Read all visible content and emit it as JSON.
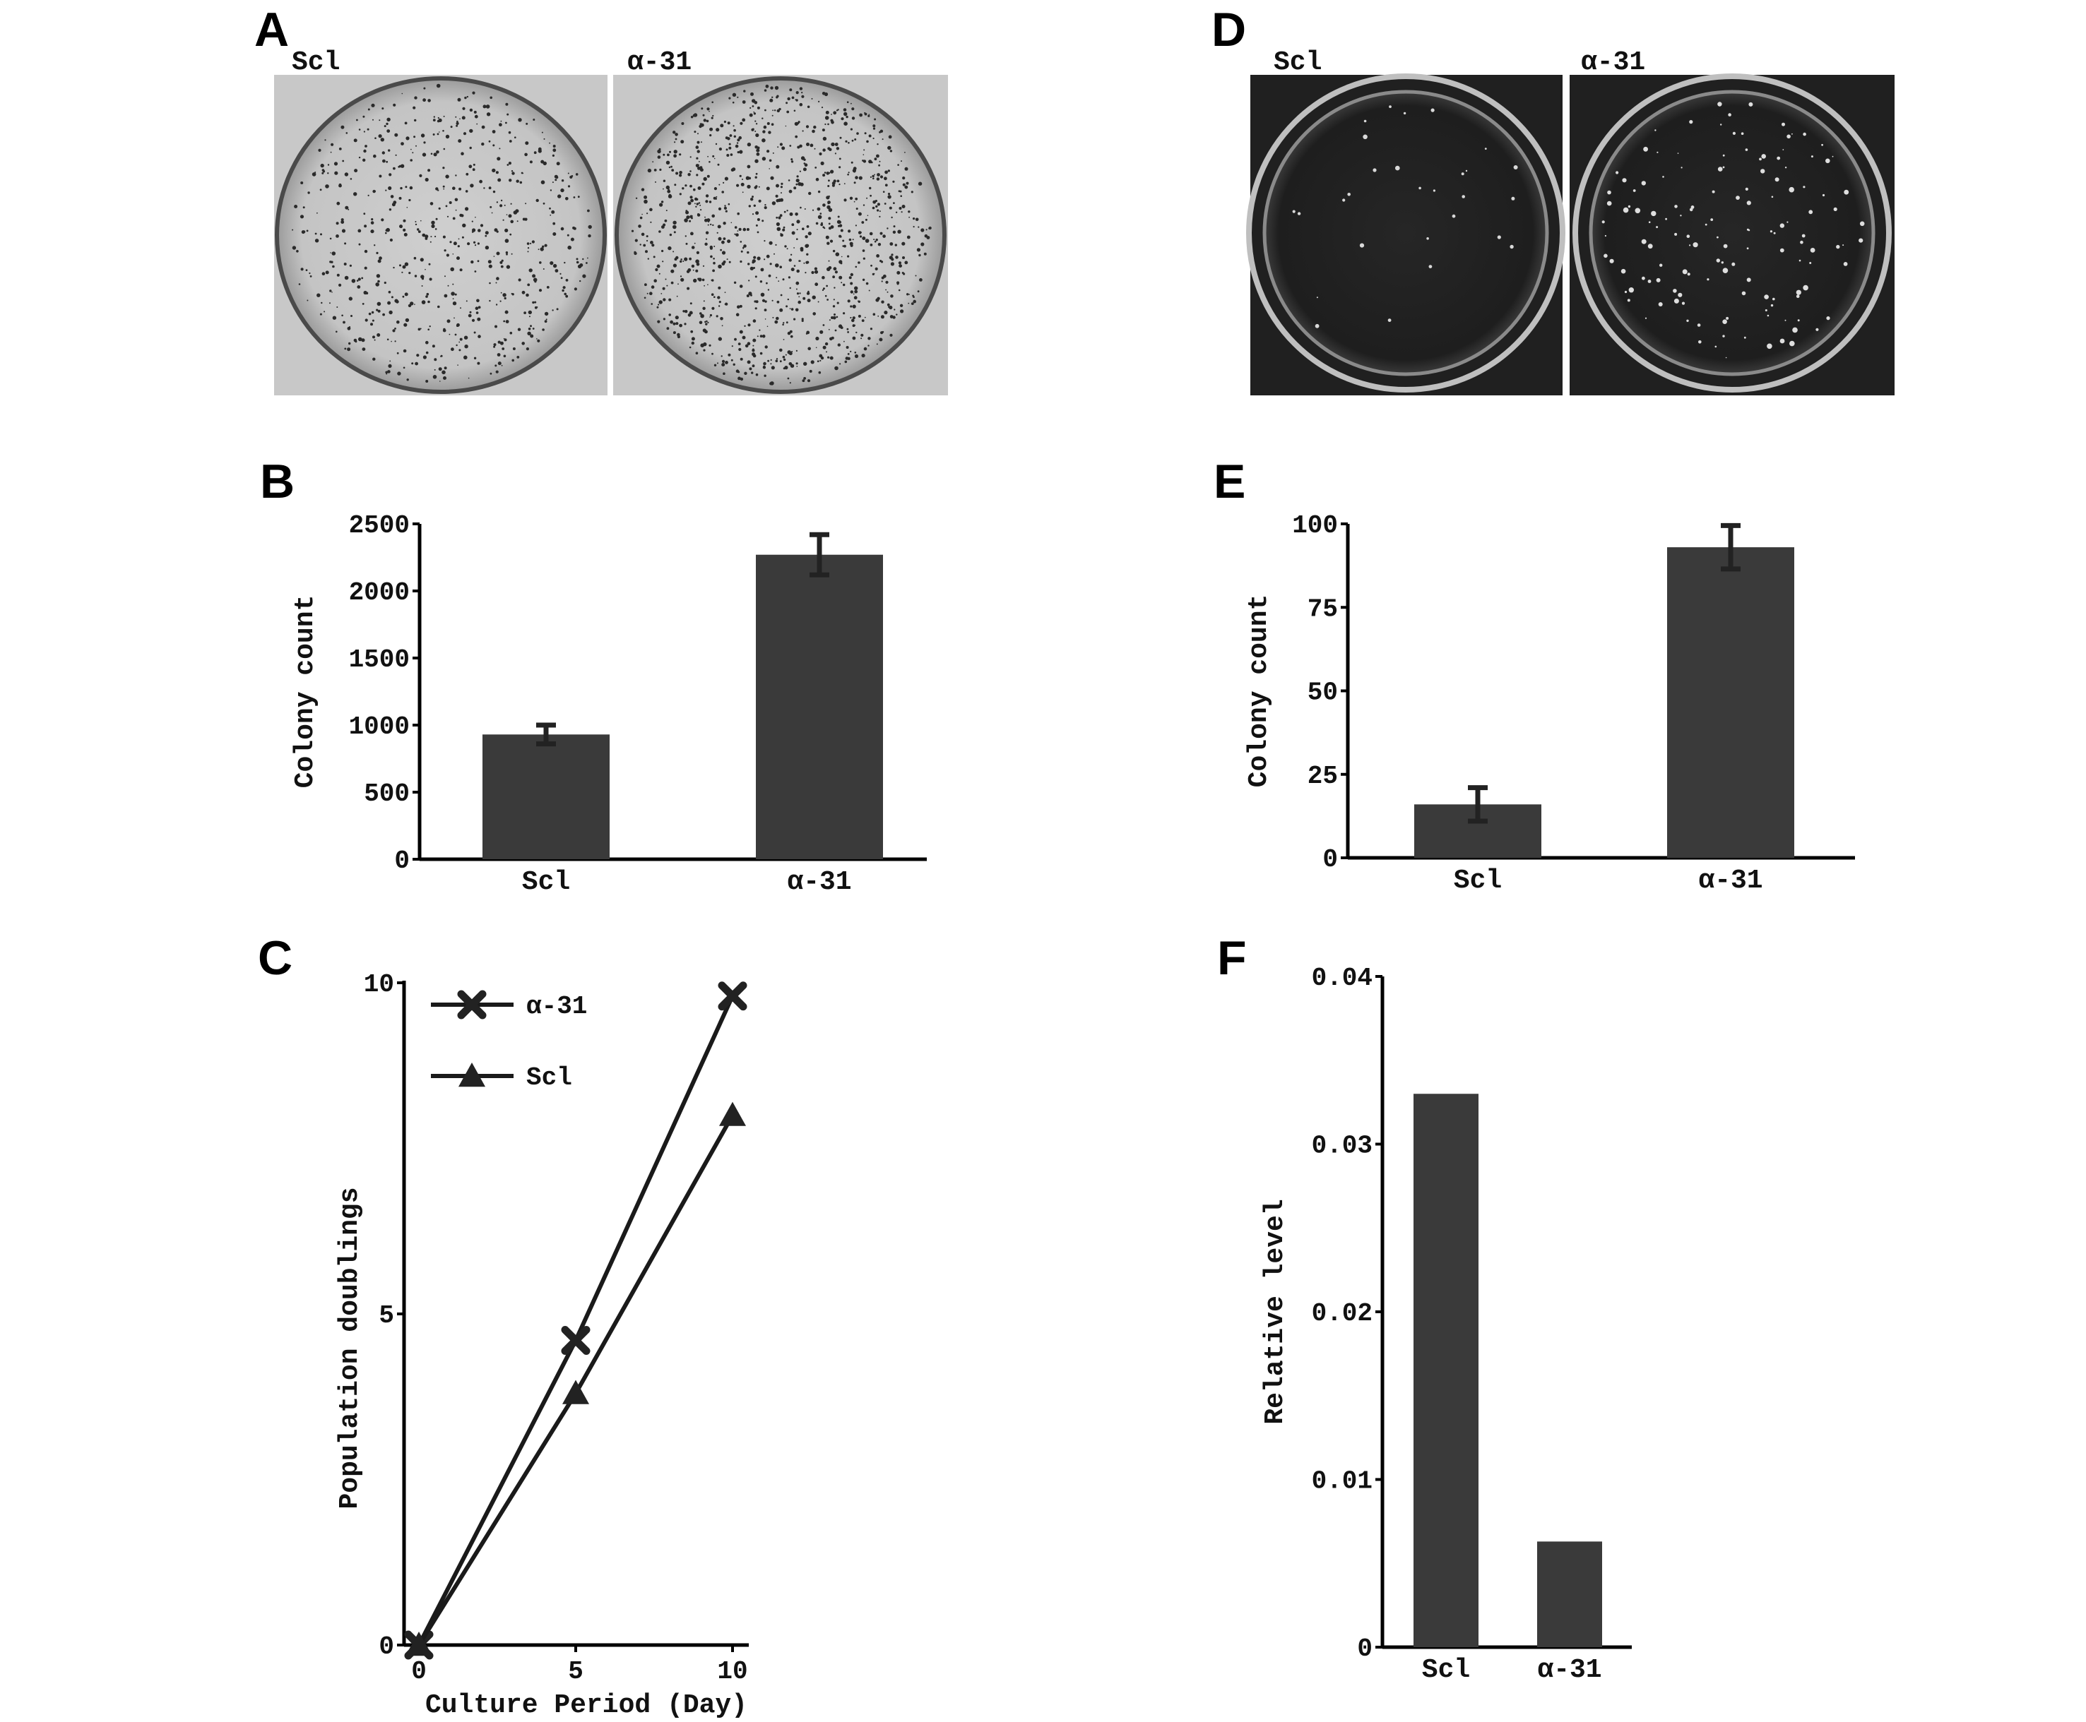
{
  "panels": {
    "A": {
      "letter": "A",
      "left_label": "Scl",
      "right_label": "α-31"
    },
    "D": {
      "letter": "D",
      "left_label": "Scl",
      "right_label": "α-31"
    },
    "B": {
      "letter": "B"
    },
    "C": {
      "letter": "C"
    },
    "E": {
      "letter": "E"
    },
    "F": {
      "letter": "F"
    }
  },
  "colors": {
    "bar": "#3a3a3a",
    "axis": "#000000",
    "line": "#1a1a1a"
  },
  "chart_data": [
    {
      "id": "B",
      "type": "bar",
      "categories": [
        "Scl",
        "α-31"
      ],
      "values": [
        930,
        2270
      ],
      "errors": [
        70,
        150
      ],
      "ylabel": "Colony count",
      "xlabel": "",
      "ylim": [
        0,
        2500
      ],
      "yticks": [
        0,
        500,
        1000,
        1500,
        2000,
        2500
      ]
    },
    {
      "id": "E",
      "type": "bar",
      "categories": [
        "Scl",
        "α-31"
      ],
      "values": [
        16,
        93
      ],
      "errors": [
        5,
        6.5
      ],
      "ylabel": "Colony count",
      "xlabel": "",
      "ylim": [
        0,
        100
      ],
      "yticks": [
        0,
        25,
        50,
        75,
        100
      ]
    },
    {
      "id": "C",
      "type": "line",
      "x": [
        0,
        5,
        10
      ],
      "series": [
        {
          "name": "α-31",
          "marker": "x",
          "values": [
            0,
            4.6,
            9.8
          ]
        },
        {
          "name": "Scl",
          "marker": "triangle",
          "values": [
            0,
            3.8,
            8.0
          ]
        }
      ],
      "xlabel": "Culture Period (Day)",
      "ylabel": "Population doublings",
      "xlim": [
        0,
        10
      ],
      "ylim": [
        0,
        10
      ],
      "xticks": [
        0,
        5,
        10
      ],
      "yticks": [
        0,
        5,
        10
      ],
      "legend": "top-left"
    },
    {
      "id": "F",
      "type": "bar",
      "categories": [
        "Scl",
        "α-31"
      ],
      "values": [
        0.033,
        0.0063
      ],
      "ylabel": "Relative level",
      "xlabel": "",
      "ylim": [
        0,
        0.04
      ],
      "yticks": [
        0,
        0.01,
        0.02,
        0.03,
        0.04
      ],
      "ytick_labels": [
        "0",
        "0.01",
        "0.02",
        "0.03",
        "0.04"
      ]
    }
  ]
}
